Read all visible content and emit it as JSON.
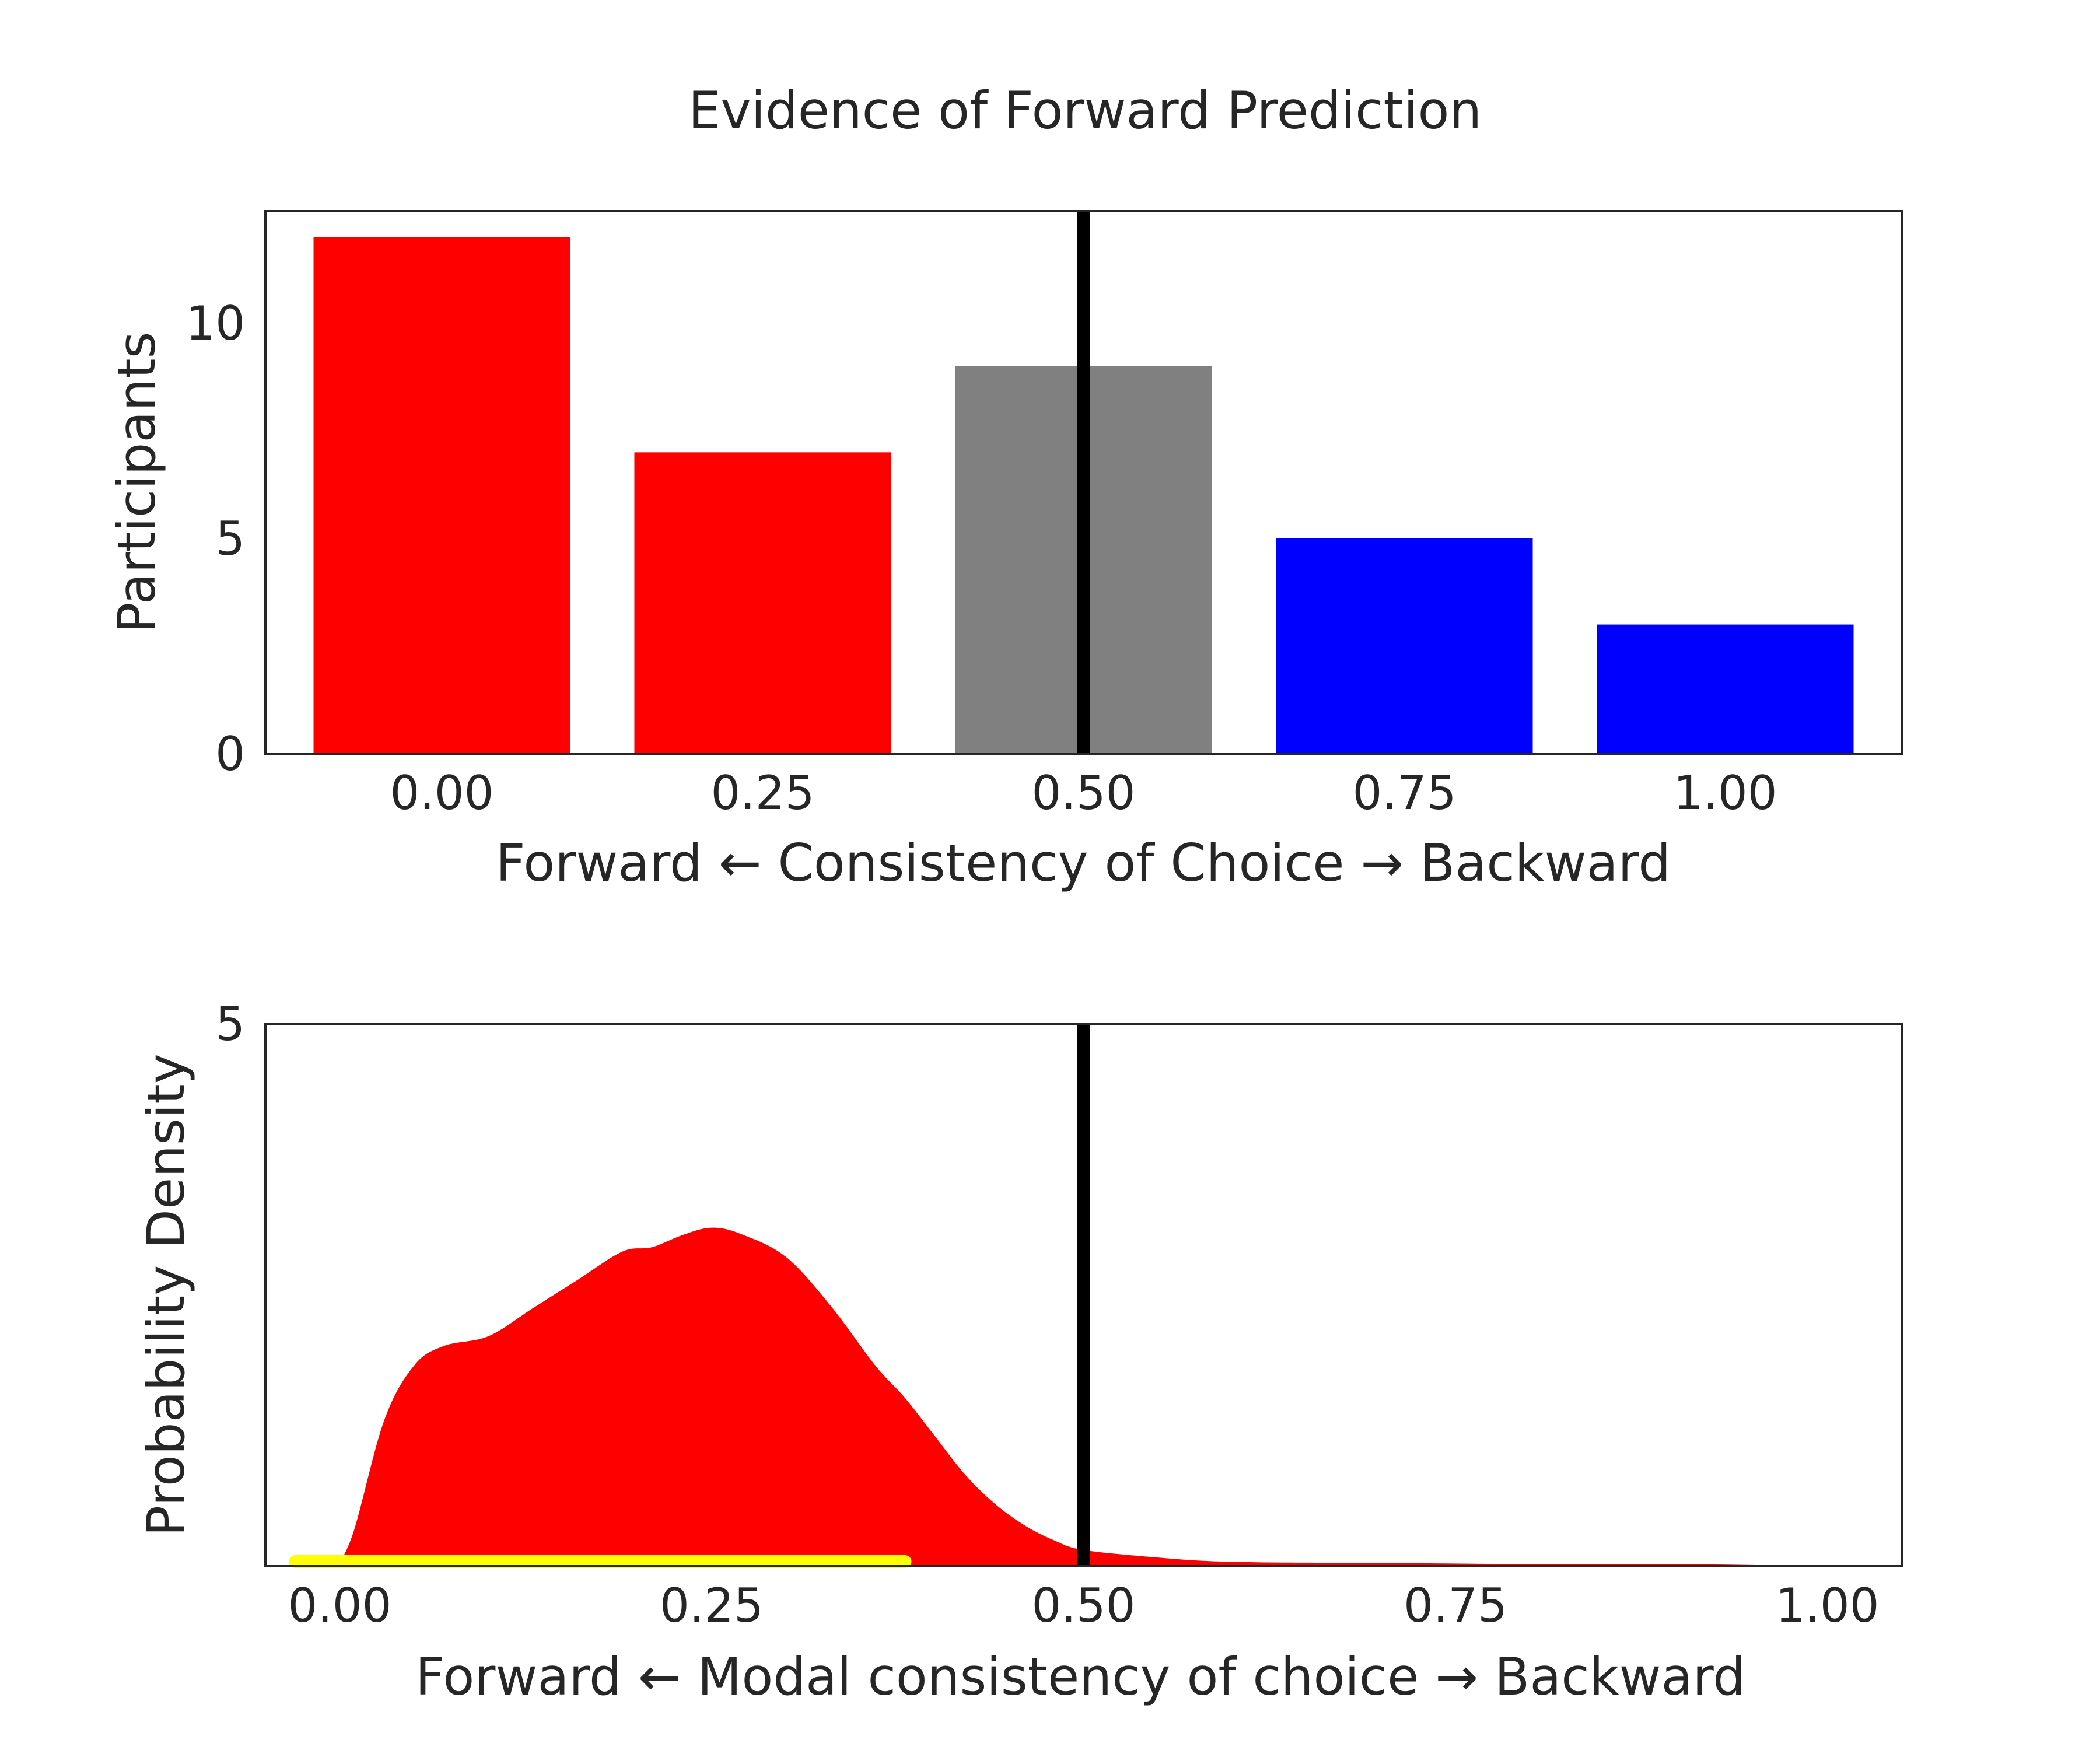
{
  "title": "Evidence of Forward Prediction",
  "colors": {
    "forward": "#ff0000",
    "neutral": "#808080",
    "backward": "#0000ff",
    "reference_line": "#000000",
    "interval": "#ffff00",
    "axes": "#262626"
  },
  "chart_data": [
    {
      "type": "bar",
      "categories": [
        "0.00",
        "0.25",
        "0.50",
        "0.75",
        "1.00"
      ],
      "values": [
        12,
        7,
        9,
        5,
        3
      ],
      "bar_colors": [
        "#ff0000",
        "#ff0000",
        "#808080",
        "#0000ff",
        "#0000ff"
      ],
      "xlabel": "Forward ← Consistency of Choice → Backward",
      "ylabel": "Participants",
      "ylim": [
        0,
        12.6
      ],
      "yticks": [
        0,
        5,
        10
      ],
      "reference_line_x": 0.5,
      "grid": false
    },
    {
      "type": "area",
      "x": [
        0.0,
        0.01,
        0.03,
        0.05,
        0.07,
        0.1,
        0.13,
        0.16,
        0.19,
        0.21,
        0.23,
        0.25,
        0.27,
        0.3,
        0.33,
        0.36,
        0.38,
        0.4,
        0.42,
        0.44,
        0.46,
        0.48,
        0.5,
        0.55,
        0.6,
        0.7,
        0.8,
        0.9,
        1.0
      ],
      "y": [
        0.03,
        0.35,
        1.35,
        1.85,
        2.03,
        2.12,
        2.38,
        2.64,
        2.9,
        2.94,
        3.05,
        3.12,
        3.06,
        2.85,
        2.4,
        1.85,
        1.55,
        1.2,
        0.85,
        0.58,
        0.38,
        0.24,
        0.15,
        0.08,
        0.04,
        0.03,
        0.02,
        0.02,
        0.0
      ],
      "xticks": [
        "0.00",
        "0.25",
        "0.50",
        "0.75",
        "1.00"
      ],
      "xlabel": "Forward ← Modal consistency of choice → Backward",
      "ylabel": "Probability Density",
      "xlim": [
        -0.05,
        1.05
      ],
      "ylim": [
        0,
        5
      ],
      "yticks": [
        5
      ],
      "reference_line_x": 0.5,
      "interval": [
        -0.03,
        0.38
      ],
      "fill_color": "#ff0000",
      "grid": false
    }
  ]
}
